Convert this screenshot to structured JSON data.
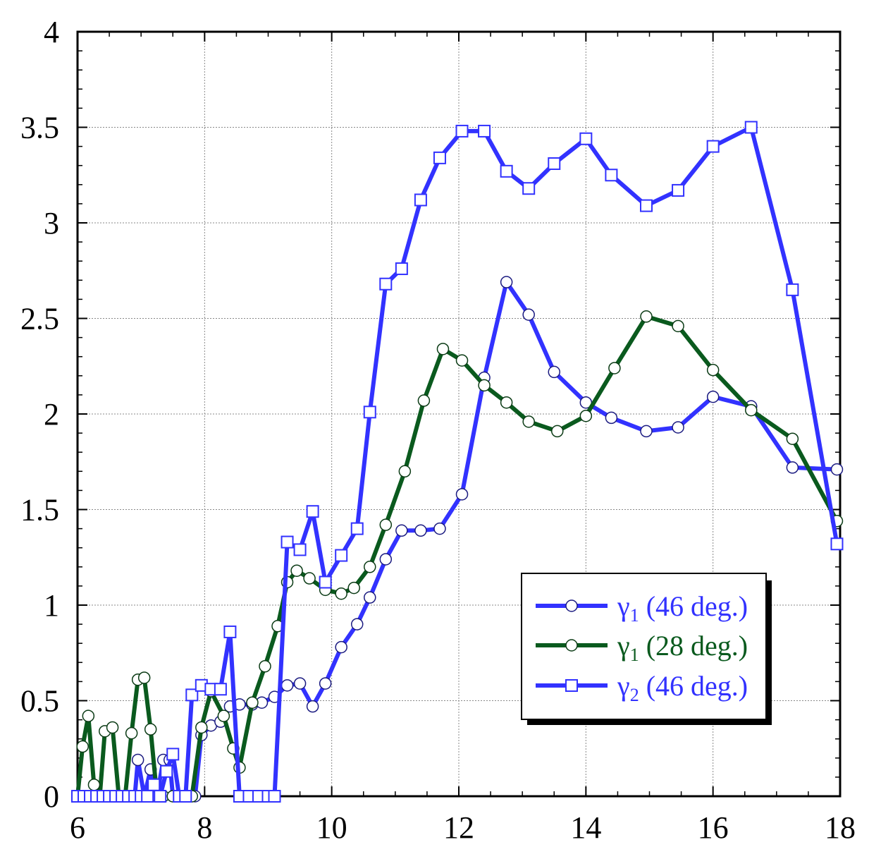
{
  "chart_data": {
    "type": "line",
    "xlim": [
      6,
      18
    ],
    "ylim": [
      0,
      4
    ],
    "x_ticks": [
      "6",
      "8",
      "10",
      "12",
      "14",
      "16",
      "18"
    ],
    "y_ticks": [
      "0",
      "0.5",
      "1",
      "1.5",
      "2",
      "2.5",
      "3",
      "3.5",
      "4"
    ],
    "grid": true,
    "legend_position": "bottom-right",
    "series": [
      {
        "name": "γ1 (46 deg.)",
        "symbol": "γ",
        "subscript": "1",
        "suffix": " (46 deg.)",
        "color": "#3232ff",
        "marker": "circle",
        "points": [
          [
            6,
            0
          ],
          [
            6.1,
            0
          ],
          [
            6.2,
            0
          ],
          [
            6.3,
            0
          ],
          [
            6.4,
            0
          ],
          [
            6.5,
            0
          ],
          [
            6.6,
            0
          ],
          [
            6.7,
            0
          ],
          [
            6.8,
            0
          ],
          [
            6.9,
            0
          ],
          [
            6.95,
            0.19
          ],
          [
            7.05,
            0
          ],
          [
            7.15,
            0.14
          ],
          [
            7.25,
            0
          ],
          [
            7.35,
            0.19
          ],
          [
            7.45,
            0.19
          ],
          [
            7.5,
            0
          ],
          [
            7.6,
            0
          ],
          [
            7.7,
            0
          ],
          [
            7.8,
            0
          ],
          [
            7.85,
            0
          ],
          [
            7.95,
            0.32
          ],
          [
            8.1,
            0.37
          ],
          [
            8.25,
            0.39
          ],
          [
            8.4,
            0.47
          ],
          [
            8.55,
            0.48
          ],
          [
            8.75,
            0.48
          ],
          [
            8.9,
            0.49
          ],
          [
            9.1,
            0.52
          ],
          [
            9.3,
            0.58
          ],
          [
            9.5,
            0.59
          ],
          [
            9.7,
            0.47
          ],
          [
            9.9,
            0.59
          ],
          [
            10.15,
            0.78
          ],
          [
            10.4,
            0.9
          ],
          [
            10.6,
            1.04
          ],
          [
            10.85,
            1.24
          ],
          [
            11.1,
            1.39
          ],
          [
            11.4,
            1.39
          ],
          [
            11.7,
            1.4
          ],
          [
            12.05,
            1.58
          ],
          [
            12.4,
            2.19
          ],
          [
            12.75,
            2.69
          ],
          [
            13.1,
            2.52
          ],
          [
            13.5,
            2.22
          ],
          [
            14,
            2.06
          ],
          [
            14.4,
            1.98
          ],
          [
            14.95,
            1.91
          ],
          [
            15.45,
            1.93
          ],
          [
            16,
            2.09
          ],
          [
            16.6,
            2.04
          ],
          [
            17.25,
            1.72
          ],
          [
            17.95,
            1.71
          ]
        ]
      },
      {
        "name": "γ1 (28 deg.)",
        "symbol": "γ",
        "subscript": "1",
        "suffix": " (28 deg.)",
        "color": "#0a5a1e",
        "marker": "circle",
        "points": [
          [
            6,
            0
          ],
          [
            6.08,
            0.26
          ],
          [
            6.17,
            0.42
          ],
          [
            6.26,
            0.06
          ],
          [
            6.35,
            0
          ],
          [
            6.43,
            0.34
          ],
          [
            6.55,
            0.36
          ],
          [
            6.65,
            0
          ],
          [
            6.75,
            0
          ],
          [
            6.85,
            0.33
          ],
          [
            6.95,
            0.61
          ],
          [
            7.05,
            0.62
          ],
          [
            7.15,
            0.35
          ],
          [
            7.25,
            0
          ],
          [
            7.35,
            0
          ],
          [
            7.5,
            0
          ],
          [
            7.6,
            0
          ],
          [
            7.7,
            0
          ],
          [
            7.8,
            0
          ],
          [
            7.95,
            0.36
          ],
          [
            8.1,
            0.55
          ],
          [
            8.3,
            0.42
          ],
          [
            8.45,
            0.25
          ],
          [
            8.55,
            0.15
          ],
          [
            8.75,
            0.49
          ],
          [
            8.95,
            0.68
          ],
          [
            9.15,
            0.89
          ],
          [
            9.3,
            1.12
          ],
          [
            9.45,
            1.18
          ],
          [
            9.65,
            1.14
          ],
          [
            9.9,
            1.08
          ],
          [
            10.15,
            1.06
          ],
          [
            10.35,
            1.09
          ],
          [
            10.6,
            1.2
          ],
          [
            10.85,
            1.42
          ],
          [
            11.15,
            1.7
          ],
          [
            11.45,
            2.07
          ],
          [
            11.75,
            2.34
          ],
          [
            12.05,
            2.28
          ],
          [
            12.4,
            2.15
          ],
          [
            12.75,
            2.06
          ],
          [
            13.1,
            1.96
          ],
          [
            13.55,
            1.91
          ],
          [
            14,
            1.99
          ],
          [
            14.45,
            2.24
          ],
          [
            14.95,
            2.51
          ],
          [
            15.45,
            2.46
          ],
          [
            16,
            2.23
          ],
          [
            16.6,
            2.02
          ],
          [
            17.25,
            1.87
          ],
          [
            17.95,
            1.44
          ]
        ]
      },
      {
        "name": "γ2 (46 deg.)",
        "symbol": "γ",
        "subscript": "2",
        "suffix": " (46 deg.)",
        "color": "#3232ff",
        "marker": "square",
        "points": [
          [
            6,
            0
          ],
          [
            6.1,
            0
          ],
          [
            6.2,
            0
          ],
          [
            6.3,
            0
          ],
          [
            6.4,
            0
          ],
          [
            6.5,
            0
          ],
          [
            6.6,
            0
          ],
          [
            6.7,
            0
          ],
          [
            6.8,
            0
          ],
          [
            6.9,
            0
          ],
          [
            7,
            0
          ],
          [
            7.1,
            0
          ],
          [
            7.2,
            0.06
          ],
          [
            7.3,
            0
          ],
          [
            7.4,
            0.13
          ],
          [
            7.5,
            0.22
          ],
          [
            7.6,
            0
          ],
          [
            7.7,
            0
          ],
          [
            7.8,
            0.53
          ],
          [
            7.95,
            0.58
          ],
          [
            8.1,
            0.56
          ],
          [
            8.25,
            0.56
          ],
          [
            8.4,
            0.86
          ],
          [
            8.55,
            0
          ],
          [
            8.7,
            0
          ],
          [
            8.85,
            0
          ],
          [
            9.0,
            0
          ],
          [
            9.1,
            0
          ],
          [
            9.3,
            1.33
          ],
          [
            9.5,
            1.29
          ],
          [
            9.7,
            1.49
          ],
          [
            9.9,
            1.12
          ],
          [
            10.15,
            1.26
          ],
          [
            10.4,
            1.4
          ],
          [
            10.6,
            2.01
          ],
          [
            10.85,
            2.68
          ],
          [
            11.1,
            2.76
          ],
          [
            11.4,
            3.12
          ],
          [
            11.7,
            3.34
          ],
          [
            12.05,
            3.48
          ],
          [
            12.4,
            3.48
          ],
          [
            12.75,
            3.27
          ],
          [
            13.1,
            3.18
          ],
          [
            13.5,
            3.31
          ],
          [
            14,
            3.44
          ],
          [
            14.4,
            3.25
          ],
          [
            14.95,
            3.09
          ],
          [
            15.45,
            3.17
          ],
          [
            16,
            3.4
          ],
          [
            16.6,
            3.5
          ],
          [
            17.25,
            2.65
          ],
          [
            17.95,
            1.32
          ]
        ]
      }
    ]
  }
}
